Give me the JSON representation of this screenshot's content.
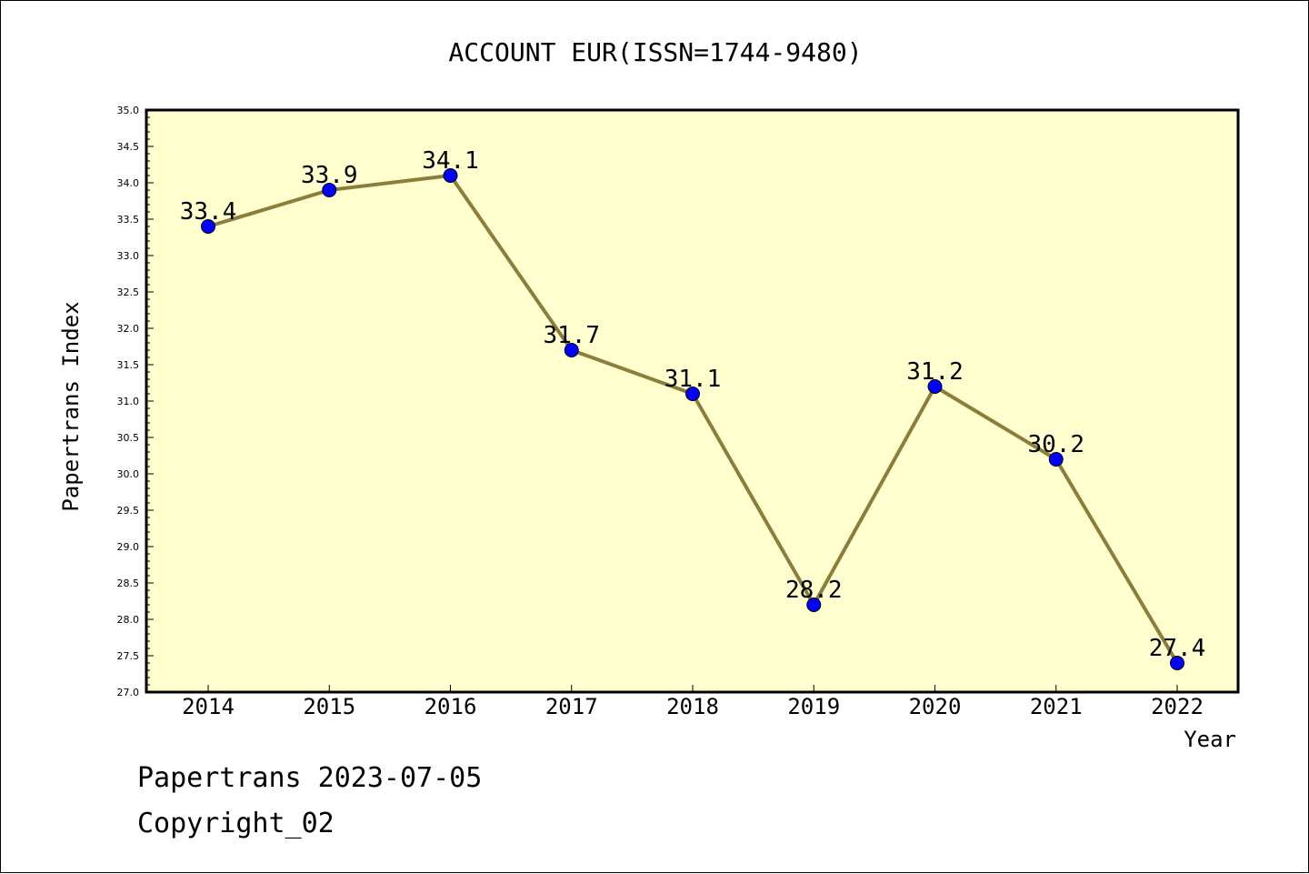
{
  "chart_data": {
    "type": "line",
    "title": "ACCOUNT EUR(ISSN=1744-9480)",
    "xlabel": "Year",
    "ylabel": "Papertrans Index",
    "categories": [
      "2014",
      "2015",
      "2016",
      "2017",
      "2018",
      "2019",
      "2020",
      "2021",
      "2022"
    ],
    "series": [
      {
        "values": [
          33.4,
          33.9,
          34.1,
          31.7,
          31.1,
          28.2,
          31.2,
          30.2,
          27.4
        ]
      }
    ],
    "data_labels": [
      "33.4",
      "33.9",
      "34.1",
      "31.7",
      "31.1",
      "28.2",
      "31.2",
      "30.2",
      "27.4"
    ],
    "ylim": [
      27.0,
      35.0
    ],
    "y_ticks": [
      "27.0",
      "27.5",
      "28.0",
      "28.5",
      "29.0",
      "29.5",
      "30.0",
      "30.5",
      "31.0",
      "31.5",
      "32.0",
      "32.5",
      "33.0",
      "33.5",
      "34.0",
      "34.5",
      "35.0"
    ],
    "grid": false,
    "legend": "none",
    "colors": {
      "plot_background": "#ffffd0",
      "line": "#8b7d3a",
      "marker": "#0000ff",
      "frame": "#000000"
    }
  },
  "footer": {
    "line1": "Papertrans 2023-07-05",
    "line2": "Copyright_02"
  }
}
